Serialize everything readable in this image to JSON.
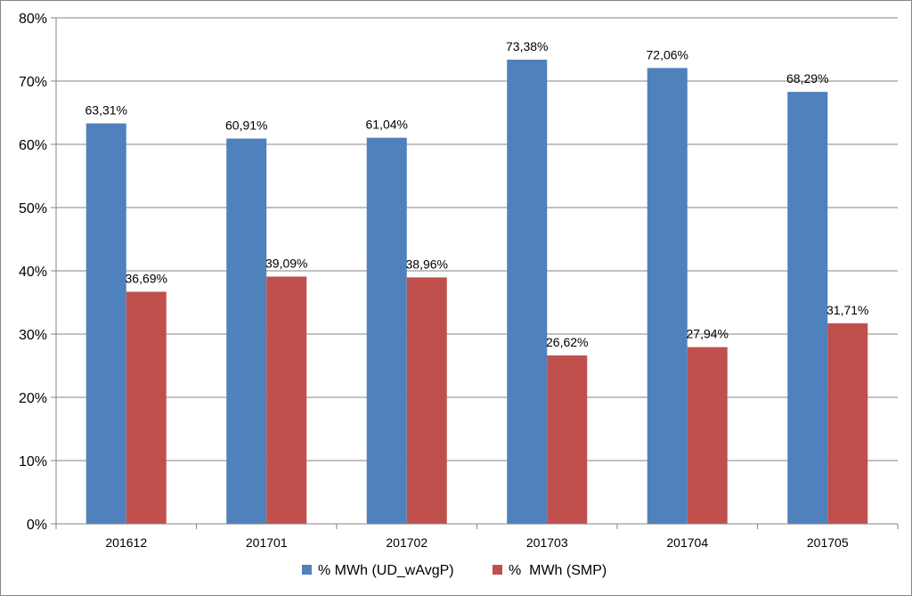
{
  "chart_data": {
    "type": "bar",
    "categories": [
      "201612",
      "201701",
      "201702",
      "201703",
      "201704",
      "201705"
    ],
    "series": [
      {
        "name": "% MWh (UD_wAvgP)",
        "color": "#4F81BD",
        "values": [
          63.31,
          60.91,
          61.04,
          73.38,
          72.06,
          68.29
        ],
        "labels": [
          "63,31%",
          "60,91%",
          "61,04%",
          "73,38%",
          "72,06%",
          "68,29%"
        ]
      },
      {
        "name": "%  MWh (SMP)",
        "color": "#C0504D",
        "values": [
          36.69,
          39.09,
          38.96,
          26.62,
          27.94,
          31.71
        ],
        "labels": [
          "36,69%",
          "39,09%",
          "38,96%",
          "26,62%",
          "27,94%",
          "31,71%"
        ]
      }
    ],
    "ylim": [
      0,
      80
    ],
    "yticks": [
      0,
      10,
      20,
      30,
      40,
      50,
      60,
      70,
      80
    ],
    "ytick_labels": [
      "0%",
      "10%",
      "20%",
      "30%",
      "40%",
      "50%",
      "60%",
      "70%",
      "80%"
    ],
    "title": "",
    "xlabel": "",
    "ylabel": "",
    "grid": true,
    "legend_position": "bottom"
  }
}
